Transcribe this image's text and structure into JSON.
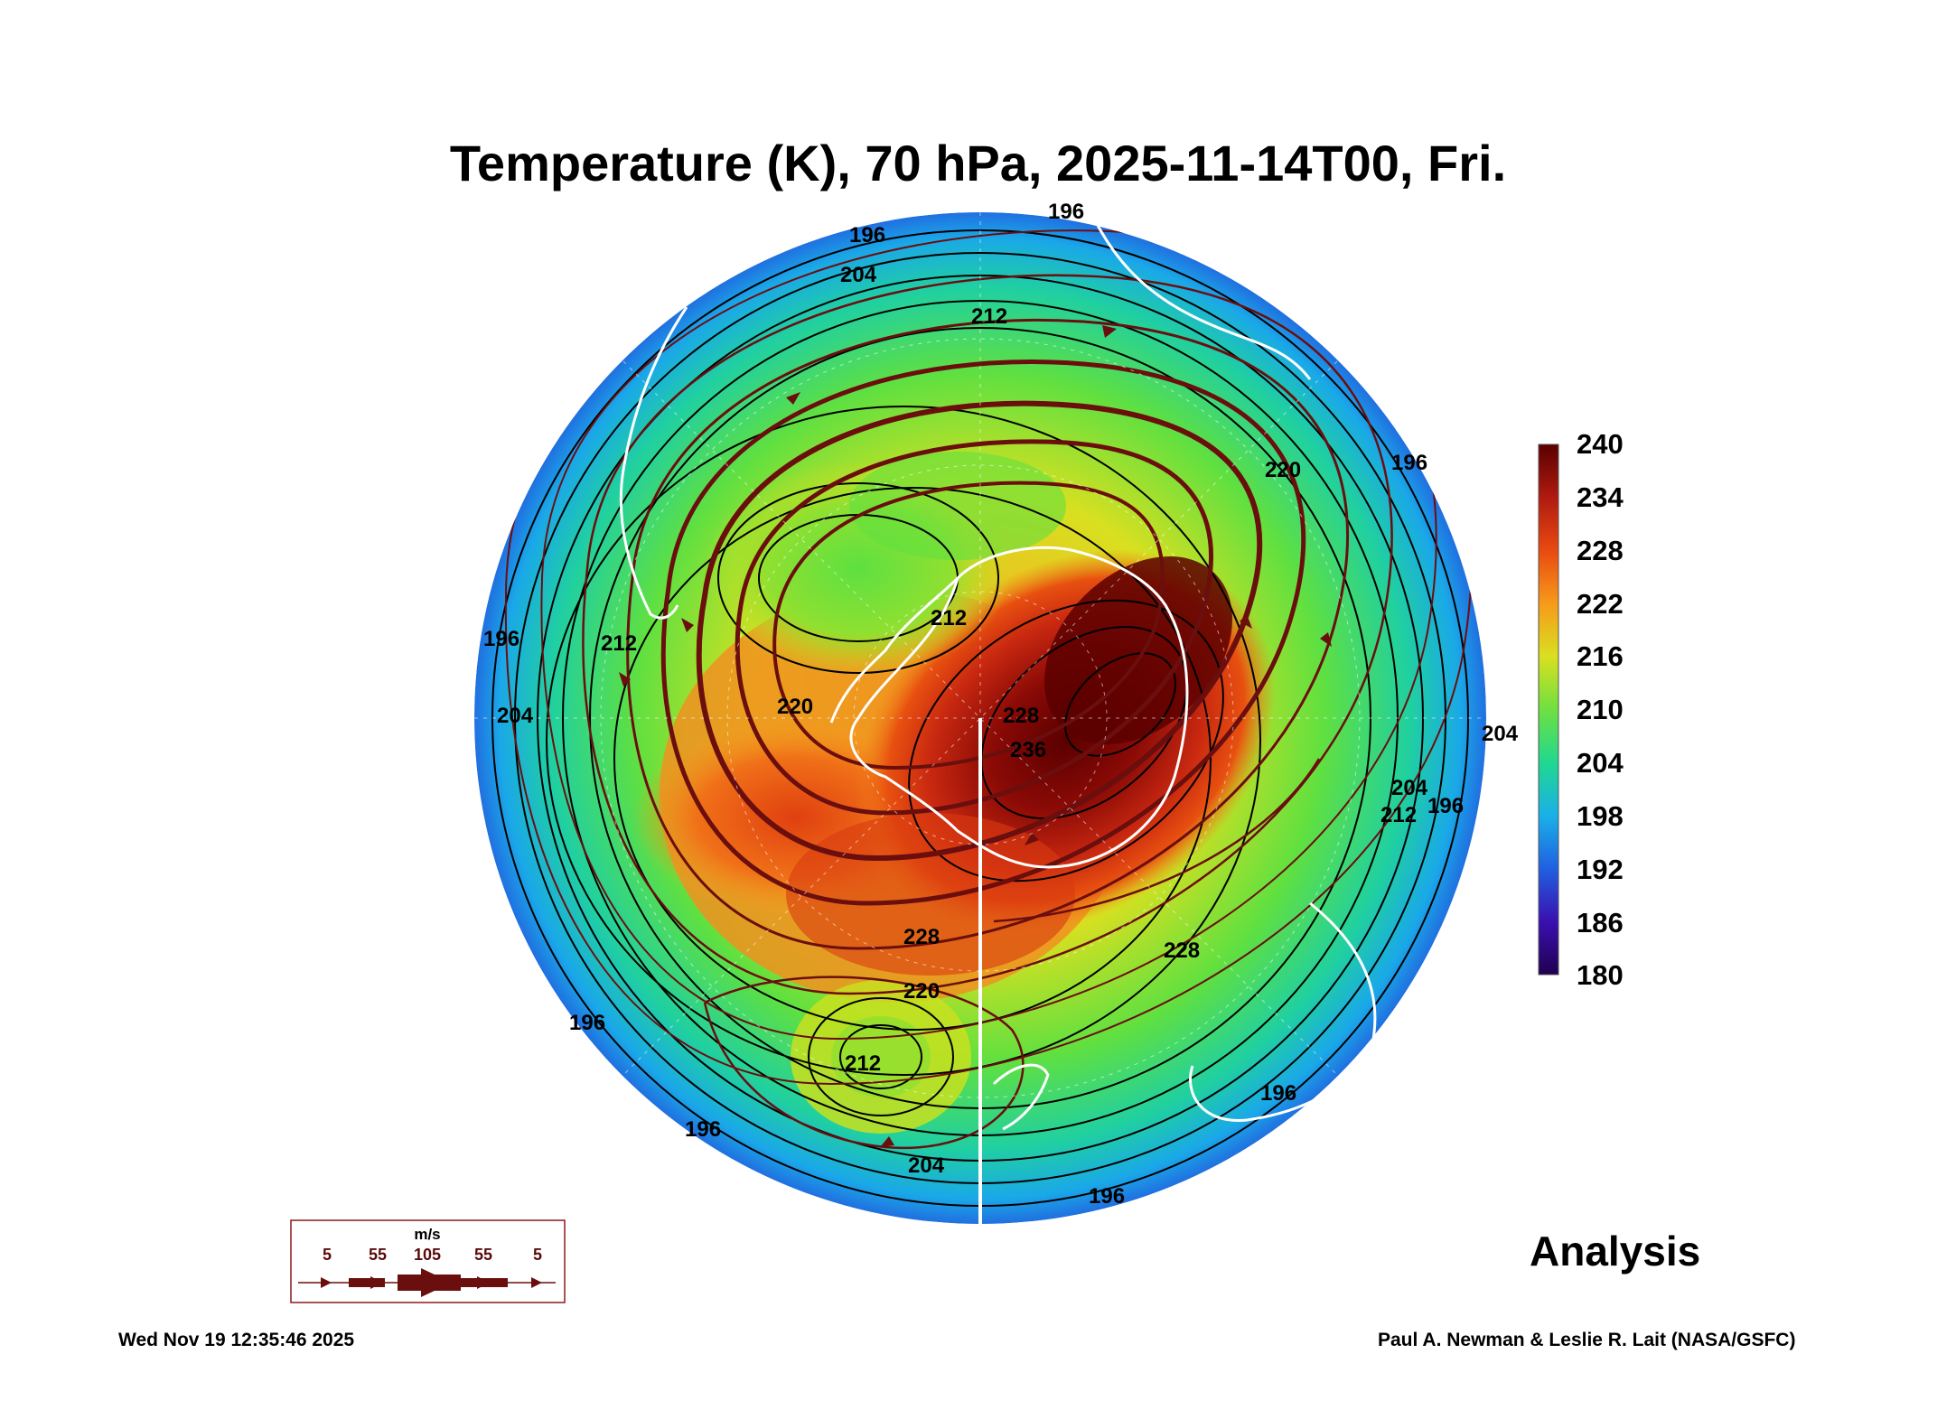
{
  "title": "Temperature (K), 70 hPa, 2025-11-14T00, Fri.",
  "colorbar": {
    "ticks": [
      "240",
      "234",
      "228",
      "222",
      "216",
      "210",
      "204",
      "198",
      "192",
      "186",
      "180"
    ],
    "colors": [
      "#5a0000",
      "#b01a10",
      "#e84a10",
      "#f79a1a",
      "#d9e020",
      "#6fe040",
      "#20d890",
      "#1ab0e8",
      "#2060e0",
      "#3a10b0",
      "#200050"
    ]
  },
  "contour_labels": [
    "196",
    "196",
    "204",
    "212",
    "220",
    "212",
    "220",
    "228",
    "236",
    "228",
    "228",
    "220",
    "212",
    "204",
    "196",
    "196",
    "204",
    "212",
    "196",
    "204",
    "196",
    "196",
    "204",
    "212",
    "196",
    "196"
  ],
  "wind_legend": {
    "unit": "m/s",
    "values": [
      "5",
      "55",
      "105",
      "55",
      "5"
    ]
  },
  "analysis_label": "Analysis",
  "timestamp": "Wed Nov 19 12:35:46 2025",
  "credit": "Paul A. Newman & Leslie R. Lait (NASA/GSFC)",
  "colors": {
    "coastline": "#ffffff",
    "streamline": "#6a0e0e",
    "contour": "#000000"
  }
}
